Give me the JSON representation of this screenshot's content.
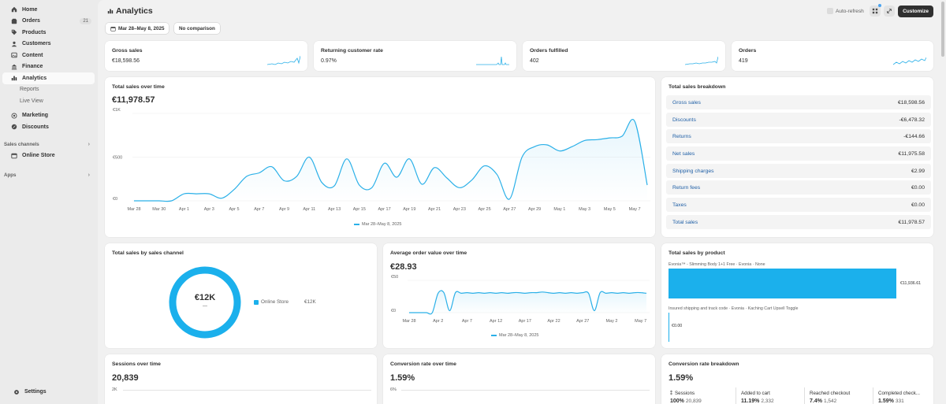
{
  "sidebar": {
    "items": [
      {
        "label": "Home",
        "icon": "home-icon"
      },
      {
        "label": "Orders",
        "icon": "orders-icon",
        "badge": "21"
      },
      {
        "label": "Products",
        "icon": "tag-icon"
      },
      {
        "label": "Customers",
        "icon": "person-icon"
      },
      {
        "label": "Content",
        "icon": "content-icon"
      },
      {
        "label": "Finance",
        "icon": "bank-icon"
      },
      {
        "label": "Analytics",
        "icon": "chart-icon"
      }
    ],
    "analytics_sub": [
      "Reports",
      "Live View"
    ],
    "items2": [
      {
        "label": "Marketing",
        "icon": "target-icon"
      },
      {
        "label": "Discounts",
        "icon": "discount-icon"
      }
    ],
    "sales_channels_label": "Sales channels",
    "online_store": "Online Store",
    "apps_label": "Apps",
    "settings": "Settings"
  },
  "header": {
    "title": "Analytics",
    "auto_refresh": "Auto-refresh",
    "customize": "Customize",
    "date_range": "Mar 28–May 8, 2025",
    "comparison": "No comparison"
  },
  "kpis": [
    {
      "title": "Gross sales",
      "value": "€18,598.56"
    },
    {
      "title": "Returning customer rate",
      "value": "0.97%"
    },
    {
      "title": "Orders fulfilled",
      "value": "402"
    },
    {
      "title": "Orders",
      "value": "419"
    }
  ],
  "total_sales_over_time": {
    "title": "Total sales over time",
    "value": "€11,978.57",
    "legend": "Mar 28–May 8, 2025",
    "accent": "#2bb0e8"
  },
  "breakdown": {
    "title": "Total sales breakdown",
    "rows": [
      {
        "label": "Gross sales",
        "value": "€18,598.56"
      },
      {
        "label": "Discounts",
        "value": "-€6,478.32"
      },
      {
        "label": "Returns",
        "value": "-€144.66"
      },
      {
        "label": "Net sales",
        "value": "€11,975.58"
      },
      {
        "label": "Shipping charges",
        "value": "€2.99"
      },
      {
        "label": "Return fees",
        "value": "€0.00"
      },
      {
        "label": "Taxes",
        "value": "€0.00"
      },
      {
        "label": "Total sales",
        "value": "€11,978.57"
      }
    ]
  },
  "by_channel": {
    "title": "Total sales by sales channel",
    "center_value": "€12K",
    "center_sub": "—",
    "legend_label": "Online Store",
    "legend_value": "€12K"
  },
  "aov": {
    "title": "Average order value over time",
    "value": "€28.93",
    "legend": "Mar 28–May 8, 2025"
  },
  "by_product": {
    "title": "Total sales by product",
    "products": [
      {
        "label": "Evonia™ - Slimming Body 1+1 Free · Evonia · None",
        "value": "€11,936.61"
      },
      {
        "label": "Insured shipping and track code · Evonia · Kaching Cart Upsell Toggle",
        "value": "€0.00"
      }
    ]
  },
  "sessions": {
    "title": "Sessions over time",
    "value": "20,839",
    "y_top": "2K"
  },
  "conversion_time": {
    "title": "Conversion rate over time",
    "value": "1.59%",
    "y_top": "6%"
  },
  "conversion_breakdown": {
    "title": "Conversion rate breakdown",
    "value": "1.59%",
    "steps": [
      {
        "label": "Sessions",
        "pct": "100%",
        "count": "20,839"
      },
      {
        "label": "Added to cart",
        "pct": "11.19%",
        "count": "2,332"
      },
      {
        "label": "Reached checkout",
        "pct": "7.4%",
        "count": "1,542"
      },
      {
        "label": "Completed check...",
        "pct": "1.59%",
        "count": "331"
      }
    ]
  },
  "chart_data": [
    {
      "type": "area",
      "title": "Total sales over time",
      "x": [
        "Mar 28",
        "Mar 29",
        "Mar 30",
        "Mar 31",
        "Apr 1",
        "Apr 2",
        "Apr 3",
        "Apr 4",
        "Apr 5",
        "Apr 6",
        "Apr 7",
        "Apr 8",
        "Apr 9",
        "Apr 10",
        "Apr 11",
        "Apr 12",
        "Apr 13",
        "Apr 14",
        "Apr 15",
        "Apr 16",
        "Apr 17",
        "Apr 18",
        "Apr 19",
        "Apr 20",
        "Apr 21",
        "Apr 22",
        "Apr 23",
        "Apr 24",
        "Apr 25",
        "Apr 26",
        "Apr 27",
        "Apr 28",
        "Apr 29",
        "Apr 30",
        "May 1",
        "May 2",
        "May 3",
        "May 4",
        "May 5",
        "May 6",
        "May 7",
        "May 8"
      ],
      "x_tick_labels": [
        "Mar 28",
        "Mar 30",
        "Apr 1",
        "Apr 3",
        "Apr 5",
        "Apr 7",
        "Apr 9",
        "Apr 11",
        "Apr 13",
        "Apr 15",
        "Apr 17",
        "Apr 19",
        "Apr 21",
        "Apr 23",
        "Apr 25",
        "Apr 27",
        "Apr 29",
        "May 1",
        "May 3",
        "May 5",
        "May 7"
      ],
      "series": [
        {
          "values": [
            0,
            0,
            0,
            0,
            80,
            80,
            80,
            30,
            130,
            280,
            320,
            390,
            230,
            280,
            500,
            210,
            170,
            480,
            180,
            150,
            430,
            270,
            480,
            190,
            380,
            260,
            150,
            240,
            400,
            300,
            20,
            500,
            620,
            640,
            570,
            620,
            690,
            700,
            720,
            740,
            910,
            180
          ]
        }
      ],
      "y_tick_labels": [
        "€1K",
        "€500",
        "€0"
      ],
      "ylim": [
        0,
        1000
      ],
      "legend": "Mar 28–May 8, 2025"
    },
    {
      "type": "area",
      "title": "Average order value over time",
      "x": [
        "Mar 28",
        "Mar 29",
        "Mar 30",
        "Mar 31",
        "Apr 1",
        "Apr 2",
        "Apr 3",
        "Apr 4",
        "Apr 5",
        "Apr 6",
        "Apr 7",
        "Apr 8",
        "Apr 9",
        "Apr 10",
        "Apr 11",
        "Apr 12",
        "Apr 13",
        "Apr 14",
        "Apr 15",
        "Apr 16",
        "Apr 17",
        "Apr 18",
        "Apr 19",
        "Apr 20",
        "Apr 21",
        "Apr 22",
        "Apr 23",
        "Apr 24",
        "Apr 25",
        "Apr 26",
        "Apr 27",
        "Apr 28",
        "Apr 29",
        "Apr 30",
        "May 1",
        "May 2",
        "May 3",
        "May 4",
        "May 5",
        "May 6",
        "May 7",
        "May 8"
      ],
      "x_tick_labels": [
        "Mar 28",
        "Apr 2",
        "Apr 7",
        "Apr 12",
        "Apr 17",
        "Apr 22",
        "Apr 27",
        "May 2",
        "May 7"
      ],
      "series": [
        {
          "values": [
            0,
            0,
            0,
            0,
            0,
            30,
            31,
            3,
            31,
            30,
            31,
            30,
            31,
            30,
            31,
            30,
            31,
            30,
            31,
            31,
            30,
            31,
            31,
            32,
            31,
            30,
            31,
            30,
            31,
            30,
            31,
            30,
            3,
            31,
            30,
            31,
            30,
            31,
            30,
            31,
            31,
            30
          ]
        }
      ],
      "y_tick_labels": [
        "€50",
        "€0"
      ],
      "ylim": [
        0,
        50
      ],
      "legend": "Mar 28–May 8, 2025"
    },
    {
      "type": "bar",
      "title": "Total sales by product",
      "categories": [
        "Evonia™ - Slimming Body 1+1 Free · Evonia · None",
        "Insured shipping and track code · Evonia · Kaching Cart Upsell Toggle"
      ],
      "values": [
        11936.61,
        0.0
      ]
    },
    {
      "type": "pie",
      "title": "Total sales by sales channel",
      "categories": [
        "Online Store"
      ],
      "values": [
        12000
      ]
    }
  ]
}
